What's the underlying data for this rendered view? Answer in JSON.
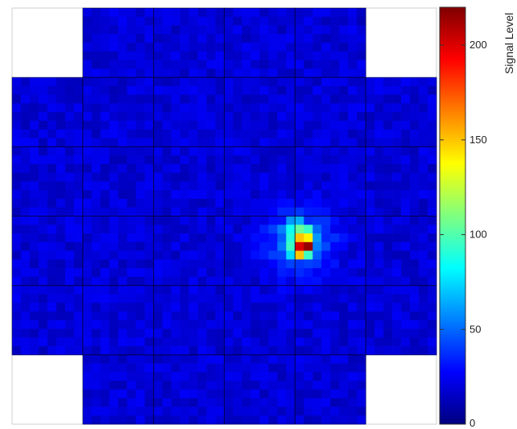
{
  "chart_data": {
    "type": "heatmap",
    "title": "",
    "grid": {
      "modules_x": 6,
      "modules_y": 6,
      "pixels_per_module": 8,
      "missing_corner_modules": [
        [
          0,
          0
        ],
        [
          5,
          0
        ],
        [
          0,
          5
        ],
        [
          5,
          5
        ]
      ]
    },
    "background_level": 12,
    "hotspot": {
      "center_col": 32,
      "center_row": 27,
      "peak_values": [
        {
          "col": 32,
          "row": 26,
          "value": 150
        },
        {
          "col": 33,
          "row": 26,
          "value": 140
        },
        {
          "col": 32,
          "row": 27,
          "value": 200
        },
        {
          "col": 33,
          "row": 27,
          "value": 215
        },
        {
          "col": 32,
          "row": 28,
          "value": 150
        },
        {
          "col": 33,
          "row": 28,
          "value": 95
        },
        {
          "col": 31,
          "row": 27,
          "value": 95
        },
        {
          "col": 31,
          "row": 26,
          "value": 90
        },
        {
          "col": 32,
          "row": 25,
          "value": 105
        },
        {
          "col": 33,
          "row": 25,
          "value": 95
        },
        {
          "col": 31,
          "row": 25,
          "value": 85
        },
        {
          "col": 32,
          "row": 24,
          "value": 65
        },
        {
          "col": 31,
          "row": 24,
          "value": 60
        },
        {
          "col": 34,
          "row": 26,
          "value": 60
        },
        {
          "col": 34,
          "row": 27,
          "value": 55
        },
        {
          "col": 31,
          "row": 28,
          "value": 75
        },
        {
          "col": 34,
          "row": 25,
          "value": 50
        },
        {
          "col": 30,
          "row": 25,
          "value": 55
        }
      ]
    },
    "colorbar": {
      "label": "Signal Level",
      "min": 0,
      "max": 220,
      "ticks": [
        0,
        50,
        100,
        150,
        200
      ],
      "colormap": "jet"
    }
  }
}
